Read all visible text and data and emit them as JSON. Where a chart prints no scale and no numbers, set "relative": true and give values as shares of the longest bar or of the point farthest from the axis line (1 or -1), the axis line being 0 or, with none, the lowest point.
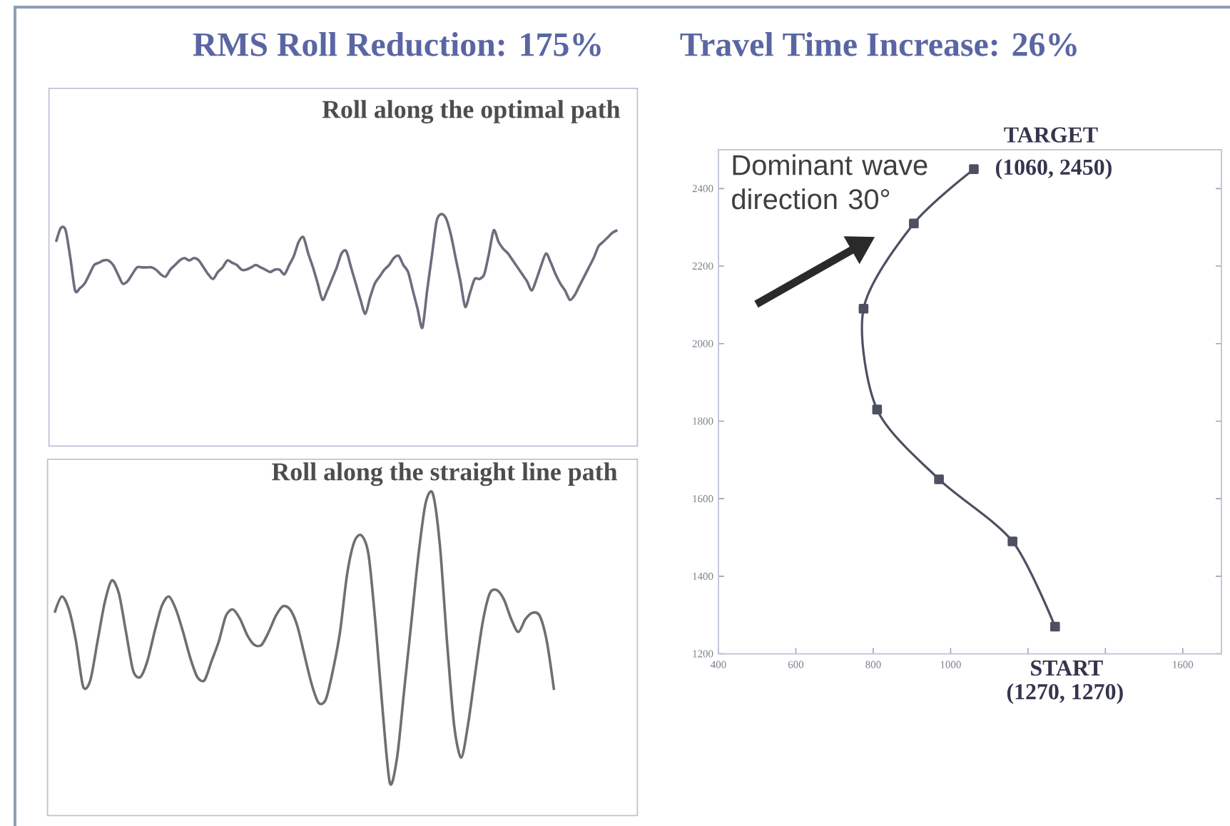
{
  "chart_data": [
    {
      "type": "line",
      "relative": true,
      "title": "Roll along the optimal path",
      "annotations": [
        "RMS Roll Reduction: 175%"
      ],
      "color": "#6c6e7e",
      "categories": [
        null,
        null,
        null,
        null,
        null,
        null,
        null,
        null,
        null,
        null,
        null,
        null,
        null,
        null,
        null,
        null,
        null,
        null,
        null,
        null,
        null,
        null,
        null,
        null,
        null,
        null,
        null,
        null,
        null,
        null,
        null,
        null,
        null,
        null,
        null,
        null,
        null,
        null,
        null,
        null,
        null,
        null,
        null,
        null,
        null,
        null,
        null,
        null,
        null,
        null,
        null,
        null,
        null,
        null,
        null,
        null,
        null,
        null,
        null,
        null,
        null,
        null,
        null,
        null,
        null,
        null,
        null,
        null,
        null,
        null,
        null,
        null,
        null,
        null,
        null,
        null,
        null,
        null,
        null,
        null,
        null,
        null,
        null,
        null,
        null,
        null,
        null,
        null,
        null,
        null,
        null,
        null,
        null,
        null,
        null,
        null,
        null,
        null,
        null,
        null,
        null,
        null,
        null,
        null,
        null,
        null,
        null,
        null,
        null,
        null,
        null,
        null,
        null,
        null,
        null,
        null,
        null,
        null,
        null
      ],
      "values": [
        0.88,
        0.94,
        0.93,
        0.81,
        0.67,
        0.68,
        0.7,
        0.74,
        0.78,
        0.79,
        0.8,
        0.8,
        0.78,
        0.74,
        0.7,
        0.71,
        0.74,
        0.77,
        0.77,
        0.77,
        0.77,
        0.76,
        0.74,
        0.73,
        0.76,
        0.78,
        0.8,
        0.81,
        0.8,
        0.81,
        0.8,
        0.77,
        0.74,
        0.72,
        0.75,
        0.77,
        0.8,
        0.79,
        0.78,
        0.76,
        0.76,
        0.77,
        0.78,
        0.77,
        0.76,
        0.75,
        0.76,
        0.76,
        0.74,
        0.78,
        0.82,
        0.88,
        0.9,
        0.83,
        0.77,
        0.7,
        0.63,
        0.67,
        0.72,
        0.77,
        0.83,
        0.84,
        0.77,
        0.7,
        0.63,
        0.57,
        0.64,
        0.7,
        0.73,
        0.76,
        0.78,
        0.81,
        0.82,
        0.78,
        0.75,
        0.67,
        0.59,
        0.51,
        0.67,
        0.82,
        0.97,
        1,
        0.98,
        0.91,
        0.81,
        0.71,
        0.6,
        0.66,
        0.72,
        0.72,
        0.74,
        0.83,
        0.93,
        0.88,
        0.85,
        0.83,
        0.8,
        0.77,
        0.74,
        0.71,
        0.67,
        0.72,
        0.78,
        0.83,
        0.79,
        0.74,
        0.7,
        0.67,
        0.63,
        0.65,
        0.69,
        0.73,
        0.77,
        0.81,
        0.86,
        0.88,
        0.9,
        0.92,
        0.93
      ]
    },
    {
      "type": "line",
      "relative": true,
      "title": "Roll along the straight line path",
      "color": "#6f6f72",
      "categories": [
        null,
        null,
        null,
        null,
        null,
        null,
        null,
        null,
        null,
        null,
        null,
        null,
        null,
        null,
        null,
        null,
        null,
        null,
        null,
        null,
        null,
        null,
        null,
        null,
        null,
        null,
        null,
        null,
        null,
        null,
        null,
        null,
        null,
        null,
        null,
        null,
        null,
        null,
        null,
        null,
        null,
        null,
        null,
        null,
        null,
        null,
        null,
        null,
        null,
        null,
        null,
        null,
        null,
        null,
        null,
        null,
        null,
        null,
        null,
        null,
        null,
        null,
        null,
        null,
        null,
        null,
        null,
        null,
        null,
        null,
        null
      ],
      "values": [
        0.63,
        0.68,
        0.64,
        0.54,
        0.4,
        0.42,
        0.54,
        0.66,
        0.73,
        0.69,
        0.57,
        0.45,
        0.43,
        0.48,
        0.57,
        0.65,
        0.68,
        0.64,
        0.57,
        0.49,
        0.43,
        0.42,
        0.48,
        0.54,
        0.62,
        0.64,
        0.61,
        0.56,
        0.53,
        0.53,
        0.57,
        0.62,
        0.65,
        0.64,
        0.59,
        0.5,
        0.41,
        0.35,
        0.36,
        0.45,
        0.57,
        0.75,
        0.85,
        0.87,
        0.81,
        0.59,
        0.32,
        0.1,
        0.18,
        0.39,
        0.6,
        0.81,
        0.97,
        1,
        0.84,
        0.54,
        0.28,
        0.18,
        0.29,
        0.45,
        0.6,
        0.69,
        0.7,
        0.67,
        0.61,
        0.57,
        0.61,
        0.63,
        0.62,
        0.54,
        0.39
      ]
    },
    {
      "type": "line",
      "color": "#4d5060",
      "marker": "square",
      "annotations": [
        "Travel Time Increase: 26%",
        "Dominant wave direction 30°",
        {
          "text": "TARGET",
          "x": 1060,
          "y": 2450
        },
        {
          "text": "START",
          "x": 1270,
          "y": 1270
        }
      ],
      "x": [
        1270,
        1160,
        970,
        810,
        775,
        905,
        1060
      ],
      "values": [
        1270,
        1490,
        1650,
        1830,
        2090,
        2310,
        2450
      ],
      "value_labels": [
        "(1270, 1270)",
        null,
        null,
        null,
        null,
        null,
        "(1060, 2450)"
      ],
      "xlim": [
        400,
        1700
      ],
      "ylim": [
        1200,
        2500
      ],
      "xticks": [
        400,
        600,
        800,
        1000,
        {
          "value": 1200,
          "label": null
        },
        {
          "value": 1400,
          "label": null
        },
        1600
      ],
      "yticks": [
        1200,
        1400,
        1600,
        1800,
        2000,
        2200,
        2400
      ]
    }
  ]
}
